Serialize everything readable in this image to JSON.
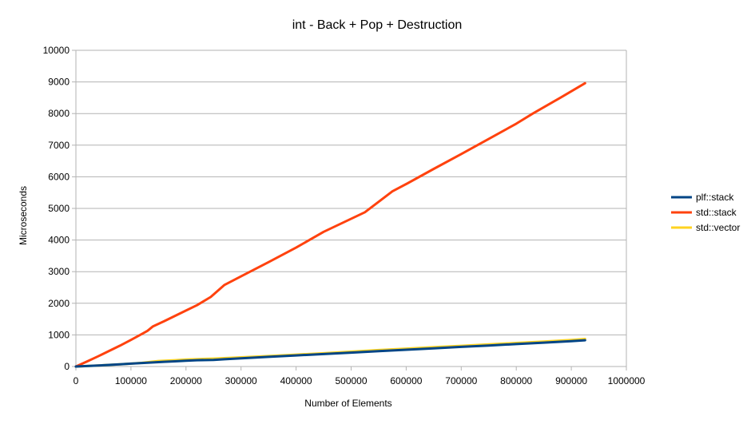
{
  "chart_data": {
    "type": "line",
    "title": "int - Back + Pop + Destruction",
    "xlabel": "Number of Elements",
    "ylabel": "Microseconds",
    "xlim": [
      0,
      1000000
    ],
    "ylim": [
      0,
      10000
    ],
    "x_ticks": [
      0,
      100000,
      200000,
      300000,
      400000,
      500000,
      600000,
      700000,
      800000,
      900000,
      1000000
    ],
    "y_ticks": [
      0,
      1000,
      2000,
      3000,
      4000,
      5000,
      6000,
      7000,
      8000,
      9000,
      10000
    ],
    "grid": "horizontal",
    "legend_position": "right",
    "series": [
      {
        "name": "plf::stack",
        "color": "#004586",
        "points": [
          [
            0,
            0
          ],
          [
            20000,
            15
          ],
          [
            40000,
            30
          ],
          [
            60000,
            50
          ],
          [
            80000,
            70
          ],
          [
            100000,
            90
          ],
          [
            120000,
            110
          ],
          [
            140000,
            130
          ],
          [
            160000,
            150
          ],
          [
            180000,
            165
          ],
          [
            200000,
            185
          ],
          [
            220000,
            200
          ],
          [
            250000,
            210
          ],
          [
            270000,
            230
          ],
          [
            300000,
            260
          ],
          [
            350000,
            305
          ],
          [
            400000,
            350
          ],
          [
            450000,
            395
          ],
          [
            500000,
            440
          ],
          [
            550000,
            485
          ],
          [
            600000,
            530
          ],
          [
            650000,
            575
          ],
          [
            700000,
            620
          ],
          [
            750000,
            665
          ],
          [
            800000,
            710
          ],
          [
            850000,
            755
          ],
          [
            900000,
            800
          ],
          [
            925000,
            830
          ]
        ]
      },
      {
        "name": "std::stack",
        "color": "#ff420e",
        "points": [
          [
            0,
            0
          ],
          [
            20000,
            160
          ],
          [
            40000,
            320
          ],
          [
            60000,
            490
          ],
          [
            80000,
            660
          ],
          [
            100000,
            840
          ],
          [
            120000,
            1030
          ],
          [
            130000,
            1130
          ],
          [
            140000,
            1270
          ],
          [
            160000,
            1430
          ],
          [
            180000,
            1600
          ],
          [
            200000,
            1770
          ],
          [
            220000,
            1940
          ],
          [
            245000,
            2200
          ],
          [
            270000,
            2580
          ],
          [
            300000,
            2850
          ],
          [
            350000,
            3300
          ],
          [
            400000,
            3760
          ],
          [
            450000,
            4260
          ],
          [
            525000,
            4880
          ],
          [
            575000,
            5540
          ],
          [
            600000,
            5770
          ],
          [
            650000,
            6250
          ],
          [
            700000,
            6720
          ],
          [
            750000,
            7200
          ],
          [
            800000,
            7680
          ],
          [
            830000,
            8000
          ],
          [
            880000,
            8500
          ],
          [
            925000,
            8960
          ]
        ]
      },
      {
        "name": "std::vector",
        "color": "#ffd320",
        "points": [
          [
            0,
            0
          ],
          [
            20000,
            15
          ],
          [
            40000,
            30
          ],
          [
            60000,
            50
          ],
          [
            80000,
            70
          ],
          [
            100000,
            90
          ],
          [
            120000,
            115
          ],
          [
            150000,
            175
          ],
          [
            180000,
            200
          ],
          [
            200000,
            220
          ],
          [
            250000,
            250
          ],
          [
            300000,
            290
          ],
          [
            350000,
            330
          ],
          [
            400000,
            375
          ],
          [
            450000,
            420
          ],
          [
            500000,
            470
          ],
          [
            550000,
            520
          ],
          [
            600000,
            565
          ],
          [
            650000,
            610
          ],
          [
            700000,
            655
          ],
          [
            750000,
            700
          ],
          [
            800000,
            745
          ],
          [
            850000,
            790
          ],
          [
            900000,
            840
          ],
          [
            925000,
            870
          ]
        ]
      }
    ]
  }
}
